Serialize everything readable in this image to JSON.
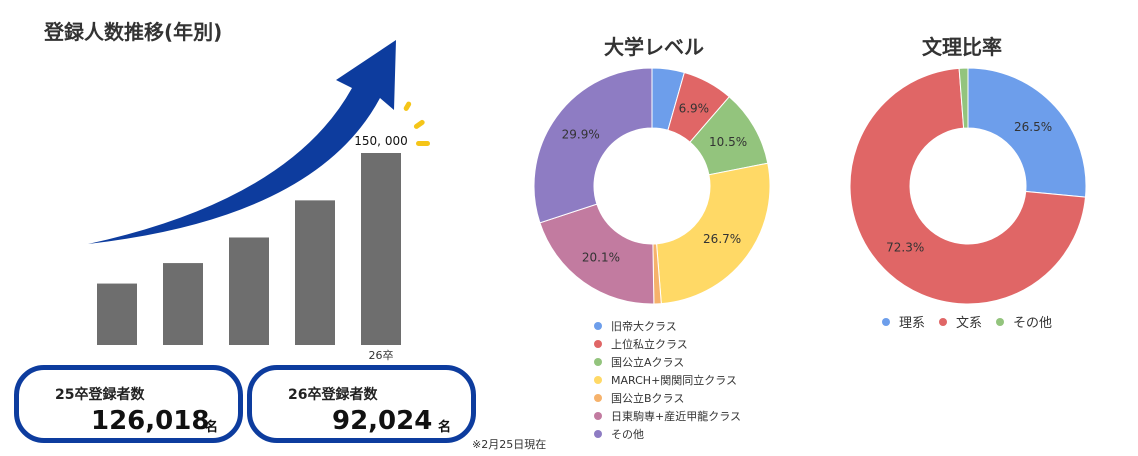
{
  "registration": {
    "title": "登録人数推移(年別)",
    "note": "※2月25日現在",
    "bars": [
      {
        "value": 48000,
        "label": "",
        "tick": ""
      },
      {
        "value": 64000,
        "label": "",
        "tick": ""
      },
      {
        "value": 84000,
        "label": "",
        "tick": ""
      },
      {
        "value": 113000,
        "label": "",
        "tick": ""
      },
      {
        "value": 150000,
        "label": "150, 000",
        "tick": "26卒"
      }
    ],
    "bar_color": "#6e6e6e",
    "arrow_color": "#0d3c9e",
    "sparkle_color": "#f5c518",
    "stats": [
      {
        "label": "25卒登録者数",
        "value": "126,018",
        "unit": "名"
      },
      {
        "label": "26卒登録者数",
        "value": "92,024",
        "unit": "名"
      }
    ]
  },
  "chart_data": [
    {
      "type": "pie",
      "title": "大学レベル",
      "categories": [
        "旧帝大クラス",
        "上位私立クラス",
        "国公立Aクラス",
        "MARCH+関関同立クラス",
        "国公立Bクラス",
        "日東駒専+産近甲龍クラス",
        "その他"
      ],
      "values": [
        4.4,
        6.9,
        10.5,
        26.7,
        1.0,
        20.1,
        29.9
      ],
      "labels": [
        "",
        "6.9%",
        "10.5%",
        "26.7%",
        "",
        "20.1%",
        "29.9%"
      ],
      "colors": [
        "#6d9eeb",
        "#e06666",
        "#93c47d",
        "#ffd966",
        "#f6b26b",
        "#c27ba0",
        "#8e7cc3"
      ],
      "legend": "bottom"
    },
    {
      "type": "pie",
      "title": "文理比率",
      "categories": [
        "理系",
        "文系",
        "その他"
      ],
      "values": [
        26.5,
        72.3,
        1.2
      ],
      "labels": [
        "26.5%",
        "72.3%",
        ""
      ],
      "colors": [
        "#6d9eeb",
        "#e06666",
        "#93c47d"
      ],
      "legend": "bottom"
    }
  ]
}
